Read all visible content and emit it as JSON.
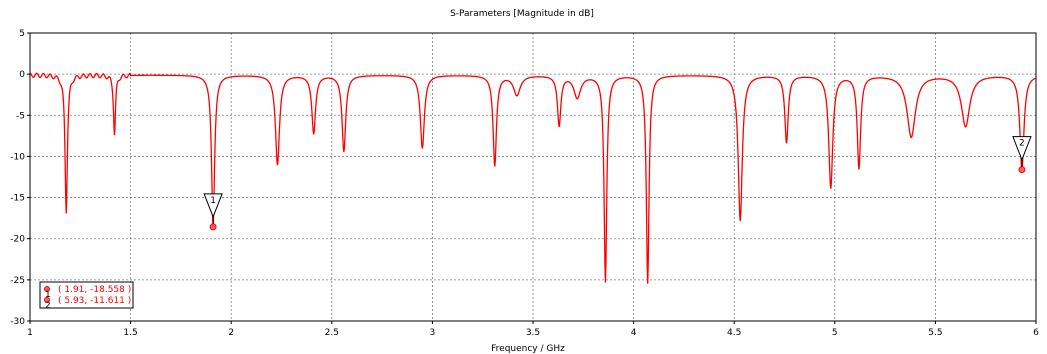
{
  "chart_data": {
    "type": "line",
    "title": "S-Parameters [Magnitude in dB]",
    "xlabel": "Frequency / GHz",
    "ylabel": "",
    "xlim": [
      1,
      6
    ],
    "ylim": [
      -30,
      5
    ],
    "x_ticks": [
      "1",
      "1.5",
      "2",
      "2.5",
      "3",
      "3.5",
      "4",
      "4.5",
      "5",
      "5.5",
      "6"
    ],
    "y_ticks": [
      "5",
      "0",
      "-5",
      "-10",
      "-15",
      "-20",
      "-25",
      "-30"
    ],
    "grid": true,
    "series": [
      {
        "color": "#ff0000",
        "baseline": -0.1,
        "resonances": [
          {
            "f": 1.18,
            "depth": -16.7,
            "width": 0.007
          },
          {
            "f": 1.42,
            "depth": -7.3,
            "width": 0.006
          },
          {
            "f": 1.91,
            "depth": -18.6,
            "width": 0.009
          },
          {
            "f": 2.23,
            "depth": -11.0,
            "width": 0.012
          },
          {
            "f": 2.41,
            "depth": -7.2,
            "width": 0.011
          },
          {
            "f": 2.56,
            "depth": -9.4,
            "width": 0.011
          },
          {
            "f": 2.95,
            "depth": -9.0,
            "width": 0.012
          },
          {
            "f": 3.31,
            "depth": -11.1,
            "width": 0.01
          },
          {
            "f": 3.42,
            "depth": -2.5,
            "width": 0.02
          },
          {
            "f": 3.63,
            "depth": -6.2,
            "width": 0.01
          },
          {
            "f": 3.72,
            "depth": -2.8,
            "width": 0.02
          },
          {
            "f": 3.86,
            "depth": -25.2,
            "width": 0.008
          },
          {
            "f": 4.07,
            "depth": -25.4,
            "width": 0.008
          },
          {
            "f": 4.53,
            "depth": -17.8,
            "width": 0.012
          },
          {
            "f": 4.76,
            "depth": -8.3,
            "width": 0.01
          },
          {
            "f": 4.98,
            "depth": -13.8,
            "width": 0.012
          },
          {
            "f": 5.12,
            "depth": -11.4,
            "width": 0.01
          },
          {
            "f": 5.38,
            "depth": -7.6,
            "width": 0.025
          },
          {
            "f": 5.65,
            "depth": -6.3,
            "width": 0.025
          },
          {
            "f": 5.93,
            "depth": -11.6,
            "width": 0.012
          }
        ]
      }
    ],
    "markers": [
      {
        "label": "1",
        "x": 1.91,
        "y": -18.558
      },
      {
        "label": "2",
        "x": 5.93,
        "y": -11.611
      }
    ],
    "legend": {
      "placement": "bottom-left",
      "entries": [
        "( 1.91, -18.558 )",
        "( 5.93, -11.611 )"
      ]
    }
  }
}
